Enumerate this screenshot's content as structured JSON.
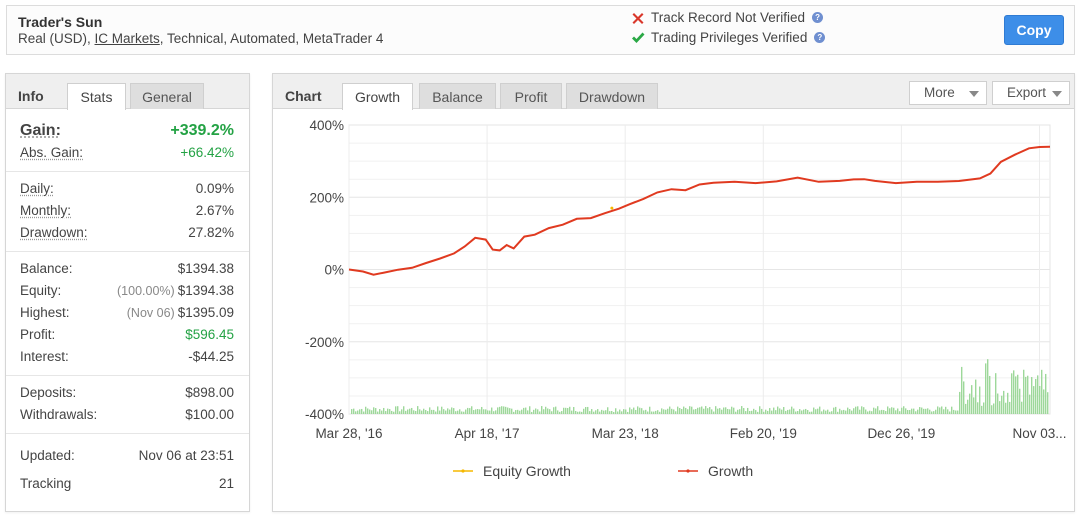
{
  "header": {
    "system_name": "Trader's Sun",
    "desc_prefix": "Real (USD), ",
    "broker": "IC Markets",
    "desc_suffix": ", Technical, Automated, MetaTrader 4",
    "track_record": "Track Record Not Verified",
    "trading_privileges": "Trading Privileges Verified",
    "help_glyph": "?",
    "copy_label": "Copy",
    "icons": {
      "not_verified": "x-mark-icon",
      "verified": "check-mark-icon",
      "help": "question-icon"
    },
    "colors": {
      "not_verified": "#d9372b",
      "verified": "#2aa845",
      "copy": "#3d8ee8"
    }
  },
  "info": {
    "title": "Info",
    "tabs": [
      "Stats",
      "General"
    ],
    "gain_label": "Gain:",
    "gain_value": "+339.2%",
    "abs_gain_label": "Abs. Gain:",
    "abs_gain_value": "+66.42%",
    "daily_label": "Daily:",
    "daily_value": "0.09%",
    "monthly_label": "Monthly:",
    "monthly_value": "2.67%",
    "drawdown_label": "Drawdown:",
    "drawdown_value": "27.82%",
    "balance_label": "Balance:",
    "balance_value": "$1394.38",
    "equity_label": "Equity:",
    "equity_note": "(100.00%)",
    "equity_value": "$1394.38",
    "highest_label": "Highest:",
    "highest_note": "(Nov 06)",
    "highest_value": "$1395.09",
    "profit_label": "Profit:",
    "profit_value": "$596.45",
    "interest_label": "Interest:",
    "interest_value": "-$44.25",
    "deposits_label": "Deposits:",
    "deposits_value": "$898.00",
    "withdrawals_label": "Withdrawals:",
    "withdrawals_value": "$100.00",
    "updated_label": "Updated:",
    "updated_value": "Nov 06 at 23:51",
    "tracking_label": "Tracking",
    "tracking_value": "21",
    "positive_color": "#23a244"
  },
  "chart_panel": {
    "title": "Chart",
    "tabs": [
      "Growth",
      "Balance",
      "Profit",
      "Drawdown"
    ],
    "active_tab": "Growth",
    "more_label": "More",
    "export_label": "Export"
  },
  "chart_data": {
    "type": "line",
    "title": "",
    "xlabel": "",
    "ylabel": "",
    "ylim": [
      -400,
      400
    ],
    "y_ticks": [
      "400%",
      "200%",
      "0%",
      "-200%",
      "-400%"
    ],
    "x_ticks": [
      "Mar 28, '16",
      "Apr 18, '17",
      "Mar 23, '18",
      "Feb 20, '19",
      "Dec 26, '19",
      "Nov 03..."
    ],
    "grid": true,
    "legend_position": "bottom",
    "series": [
      {
        "name": "Equity Growth",
        "color": "#f5b800",
        "t": [
          0.375
        ],
        "values": [
          170
        ]
      },
      {
        "name": "Growth",
        "color": "#e03a20",
        "t": [
          0,
          0.02,
          0.035,
          0.05,
          0.07,
          0.09,
          0.11,
          0.13,
          0.15,
          0.165,
          0.18,
          0.195,
          0.205,
          0.215,
          0.225,
          0.235,
          0.25,
          0.265,
          0.285,
          0.305,
          0.325,
          0.345,
          0.365,
          0.385,
          0.4,
          0.42,
          0.44,
          0.46,
          0.48,
          0.5,
          0.52,
          0.55,
          0.58,
          0.61,
          0.64,
          0.67,
          0.7,
          0.72,
          0.735,
          0.75,
          0.78,
          0.81,
          0.84,
          0.87,
          0.9,
          0.915,
          0.93,
          0.95,
          0.97,
          0.985,
          1.0
        ],
        "values": [
          0,
          -10,
          -15,
          -10,
          -5,
          5,
          15,
          25,
          50,
          65,
          85,
          80,
          60,
          50,
          70,
          60,
          90,
          100,
          110,
          120,
          135,
          145,
          160,
          170,
          175,
          190,
          210,
          220,
          225,
          230,
          235,
          240,
          240,
          245,
          250,
          240,
          245,
          245,
          250,
          240,
          240,
          245,
          245,
          250,
          250,
          270,
          300,
          320,
          330,
          335,
          340
        ]
      }
    ],
    "volume_bars": {
      "color": "#9dd89a",
      "note": "trading volume bars along the bottom"
    }
  }
}
